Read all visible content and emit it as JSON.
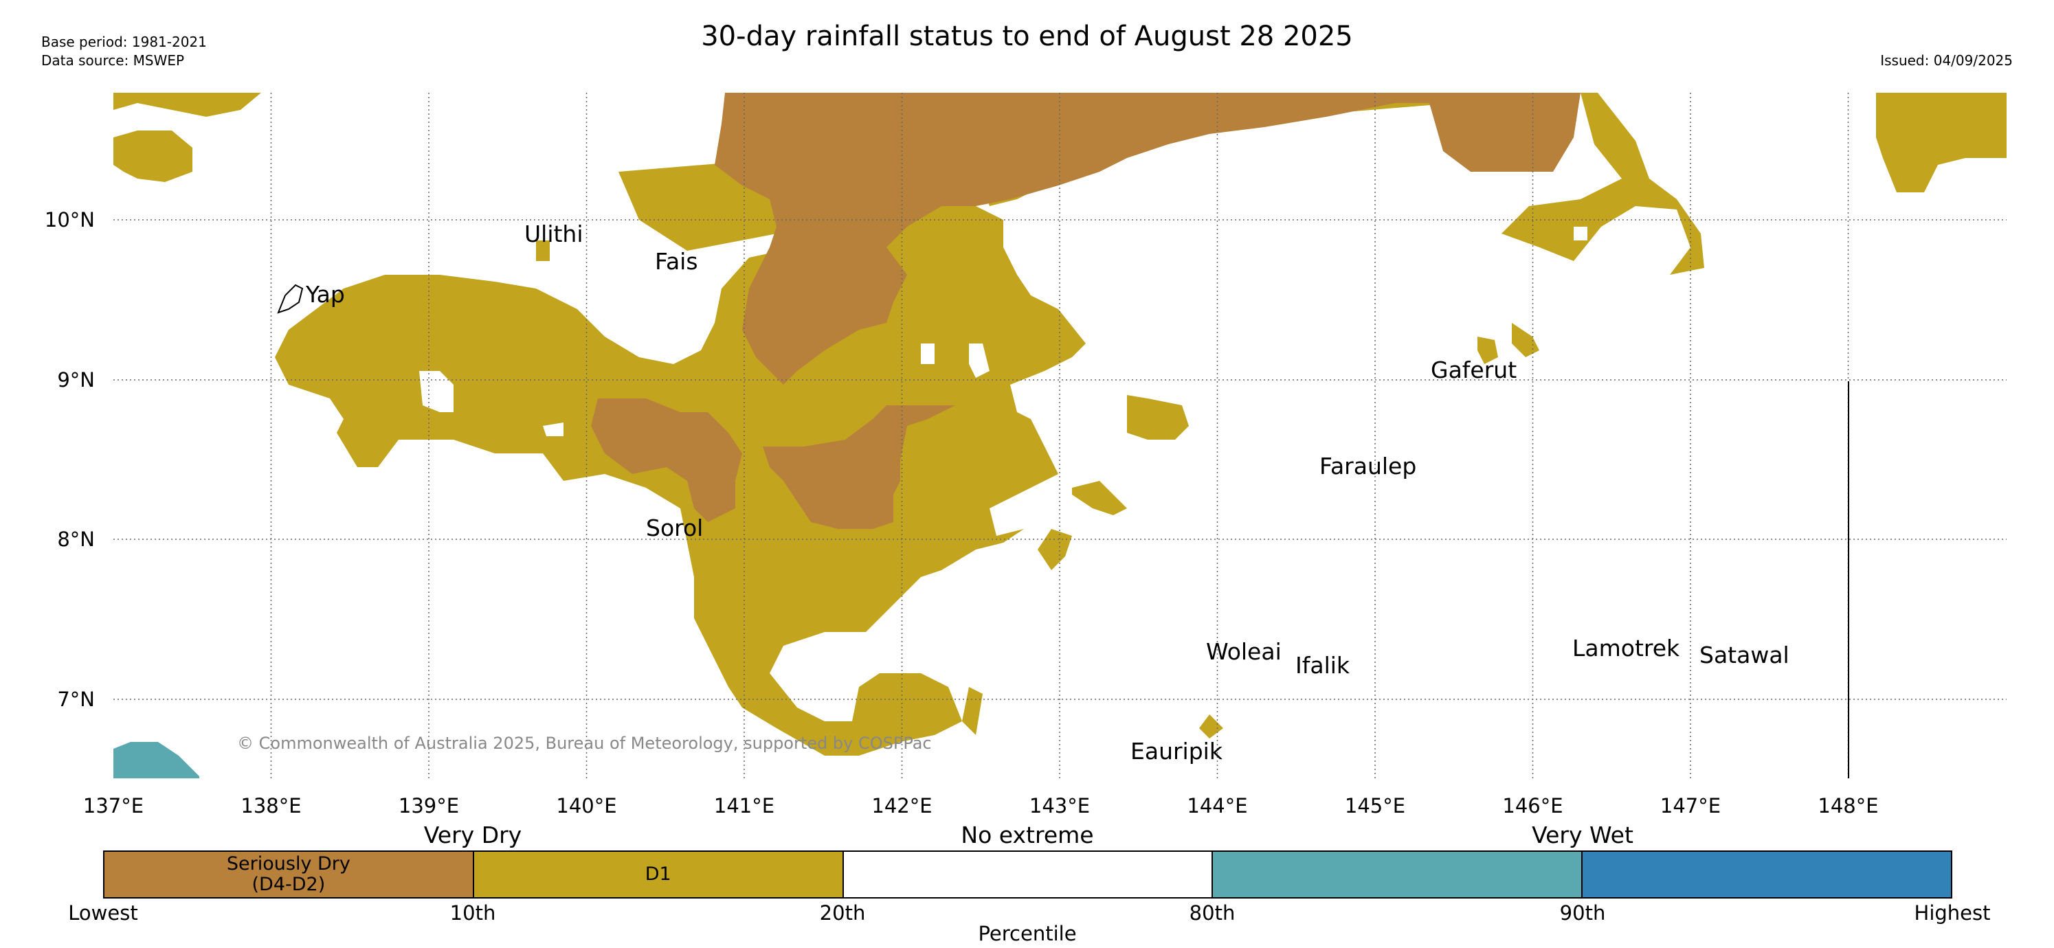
{
  "header": {
    "base_period": "Base period: 1981-2021",
    "data_source": "Data source: MSWEP",
    "title": "30-day rainfall status to end of August 28 2025",
    "issued": "Issued: 04/09/2025"
  },
  "map": {
    "lon_labels": [
      "137°E",
      "138°E",
      "139°E",
      "140°E",
      "141°E",
      "142°E",
      "143°E",
      "144°E",
      "145°E",
      "146°E",
      "147°E",
      "148°E"
    ],
    "lat_labels": [
      "10°N",
      "9°N",
      "8°N",
      "7°N"
    ],
    "islands": [
      "Ulithi",
      "Fais",
      "Yap",
      "Gaferut",
      "Faraulep",
      "Sorol",
      "Woleai",
      "Ifalik",
      "Lamotrek",
      "Satawal",
      "Eauripik"
    ],
    "copyright": "© Commonwealth of Australia 2025, Bureau of Meteorology, supported by COSPPac"
  },
  "legend": {
    "categories": [
      "Very Dry",
      "No extreme",
      "Very Wet"
    ],
    "segments": [
      {
        "label_line1": "Seriously Dry",
        "label_line2": "(D4-D2)",
        "color": "#b7813b"
      },
      {
        "label_line1": "D1",
        "label_line2": "",
        "color": "#c2a41e"
      },
      {
        "label_line1": "",
        "label_line2": "",
        "color": "#ffffff"
      },
      {
        "label_line1": "",
        "label_line2": "",
        "color": "#5aa8b0"
      },
      {
        "label_line1": "",
        "label_line2": "",
        "color": "#3282b8"
      }
    ],
    "ticks": [
      "Lowest",
      "10th",
      "20th",
      "80th",
      "90th",
      "Highest"
    ],
    "axis_label": "Percentile"
  },
  "colors": {
    "seriously_dry": "#b7813b",
    "d1": "#c2a41e",
    "very_wet": "#5aa8b0",
    "highest": "#3282b8"
  }
}
